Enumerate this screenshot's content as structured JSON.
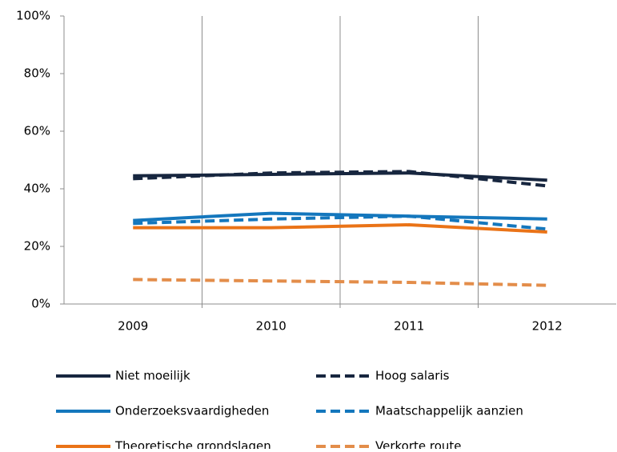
{
  "chart_data": {
    "type": "line",
    "categories": [
      "2009",
      "2010",
      "2011",
      "2012"
    ],
    "ylim": [
      0,
      100
    ],
    "yticks": [
      {
        "value": 0,
        "label": "0%"
      },
      {
        "value": 20,
        "label": "20%"
      },
      {
        "value": 40,
        "label": "40%"
      },
      {
        "value": 60,
        "label": "60%"
      },
      {
        "value": 80,
        "label": "80%"
      },
      {
        "value": 100,
        "label": "100%"
      }
    ],
    "series": [
      {
        "name": "Niet moeilijk",
        "color": "#17263f",
        "dashed": false,
        "values": [
          44.5,
          45,
          45.5,
          43
        ]
      },
      {
        "name": "Hoog salaris",
        "color": "#17263f",
        "dashed": true,
        "values": [
          43.5,
          45.5,
          46,
          41
        ]
      },
      {
        "name": "Onderzoeksvaardigheden",
        "color": "#1477bd",
        "dashed": false,
        "values": [
          29,
          31.5,
          30.5,
          29.5
        ]
      },
      {
        "name": "Maatschappelijk aanzien",
        "color": "#1477bd",
        "dashed": true,
        "values": [
          28,
          29.5,
          30.5,
          26
        ]
      },
      {
        "name": "Theoretische grondslagen",
        "color": "#ea7317",
        "dashed": false,
        "values": [
          26.5,
          26.5,
          27.5,
          25
        ]
      },
      {
        "name": "Verkorte route",
        "color": "#e38d4a",
        "dashed": true,
        "values": [
          8.5,
          8,
          7.5,
          6.5
        ]
      }
    ]
  }
}
